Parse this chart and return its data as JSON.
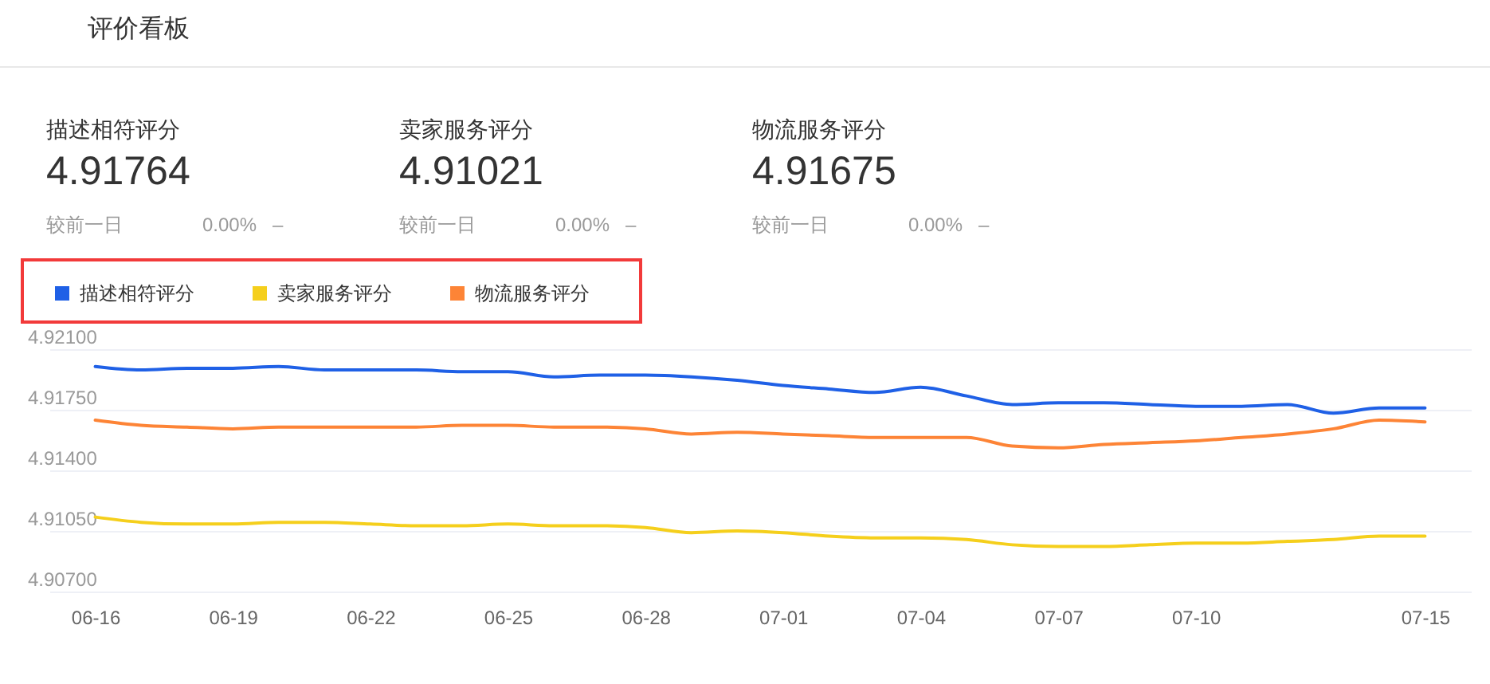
{
  "chart_data": [
    {
      "type": "other",
      "title": "评价看板",
      "categories": [
        "描述相符评分",
        "卖家服务评分",
        "物流服务评分"
      ],
      "values": [
        4.91764,
        4.91021,
        4.91675
      ],
      "data_labels": true,
      "annotations": [
        "较前一日",
        "0.00%",
        "–",
        "较前一日",
        "0.00%",
        "–",
        "较前一日",
        "0.00%",
        "–"
      ]
    },
    {
      "type": "line",
      "categories": [
        "06-16",
        null,
        null,
        "06-19",
        null,
        null,
        "06-22",
        null,
        null,
        "06-25",
        null,
        null,
        "06-28",
        null,
        null,
        "07-01",
        null,
        null,
        "07-04",
        null,
        null,
        "07-07",
        null,
        null,
        "07-10",
        null,
        null,
        null,
        null,
        "07-15"
      ],
      "series": [
        {
          "name": "描述相符评分",
          "color": "#1f60e6",
          "values": [
            4.92,
            4.9198,
            4.9199,
            4.9199,
            4.92,
            4.9198,
            4.9198,
            4.9198,
            4.9197,
            4.9197,
            4.9194,
            4.9195,
            4.9195,
            4.9194,
            4.9192,
            4.9189,
            4.9187,
            4.9185,
            4.9188,
            4.9183,
            4.9178,
            4.9179,
            4.9179,
            4.9178,
            4.9177,
            4.9177,
            4.9178,
            4.9173,
            4.9176,
            4.9176
          ]
        },
        {
          "name": "卖家服务评分",
          "color": "#f5cf1c",
          "values": [
            4.9113,
            4.911,
            4.9109,
            4.9109,
            4.911,
            4.911,
            4.9109,
            4.9108,
            4.9108,
            4.9109,
            4.9108,
            4.9108,
            4.9107,
            4.9104,
            4.9105,
            4.9104,
            4.9102,
            4.9101,
            4.9101,
            4.91,
            4.9097,
            4.9096,
            4.9096,
            4.9097,
            4.9098,
            4.9098,
            4.9099,
            4.91,
            4.9102,
            4.9102
          ]
        },
        {
          "name": "物流服务评分",
          "color": "#fd8436",
          "values": [
            4.9169,
            4.9166,
            4.9165,
            4.9164,
            4.9165,
            4.9165,
            4.9165,
            4.9165,
            4.9166,
            4.9166,
            4.9165,
            4.9165,
            4.9164,
            4.9161,
            4.9162,
            4.9161,
            4.916,
            4.9159,
            4.9159,
            4.9159,
            4.9154,
            4.9153,
            4.9155,
            4.9156,
            4.9157,
            4.9159,
            4.9161,
            4.9164,
            4.9169,
            4.9168
          ]
        }
      ],
      "ylim": [
        4.907,
        4.921
      ],
      "yticks": [
        {
          "value": 4.907,
          "label": "4.90700"
        },
        {
          "value": 4.9105,
          "label": "4.91050"
        },
        {
          "value": 4.914,
          "label": "4.91400"
        },
        {
          "value": 4.9175,
          "label": "4.91750"
        },
        {
          "value": 4.921,
          "label": "4.92100"
        }
      ],
      "grid": "y",
      "legend": "top left"
    }
  ]
}
